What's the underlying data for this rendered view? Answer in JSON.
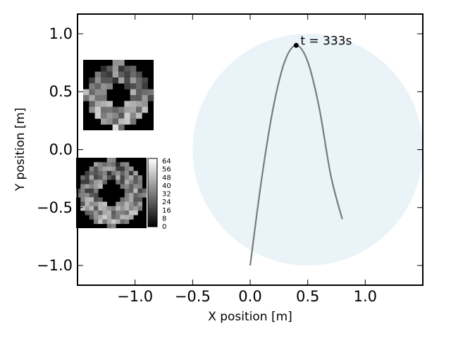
{
  "chart_data": {
    "type": "line",
    "xlabel": "X position [m]",
    "ylabel": "Y position [m]",
    "xlim": [
      -1.5,
      1.5
    ],
    "ylim": [
      -1.17,
      1.17
    ],
    "xticks": [
      -1.0,
      -0.5,
      0.0,
      0.5,
      1.0
    ],
    "xtick_labels": [
      "−1.0",
      "−0.5",
      "0.0",
      "0.5",
      "1.0"
    ],
    "yticks": [
      -1.0,
      -0.5,
      0.0,
      0.5,
      1.0
    ],
    "ytick_labels": [
      "−1.0",
      "−0.5",
      "0.0",
      "0.5",
      "1.0"
    ],
    "grid": false,
    "circle": {
      "center": [
        0.5,
        0.0
      ],
      "radius": 1.0,
      "color": "#eaf3f8"
    },
    "trajectory": {
      "color": "#7a7a7a",
      "x": [
        0.0,
        0.1,
        0.2,
        0.3,
        0.4,
        0.5,
        0.6,
        0.7,
        0.8
      ],
      "y": [
        -1.0,
        -0.25,
        0.36,
        0.76,
        0.9,
        0.76,
        0.36,
        -0.22,
        -0.6
      ]
    },
    "marker": {
      "x": 0.4,
      "y": 0.9,
      "label": "t = 333s"
    },
    "insets": [
      {
        "position": "upper-left",
        "image": "pixel-heatmap-ring"
      },
      {
        "position": "lower-left",
        "image": "pixel-heatmap-ring"
      }
    ],
    "colorbar": {
      "ticks": [
        "64",
        "56",
        "48",
        "40",
        "32",
        "24",
        "16",
        "8",
        "0"
      ],
      "range": [
        0,
        64
      ],
      "colormap": "gray"
    }
  }
}
